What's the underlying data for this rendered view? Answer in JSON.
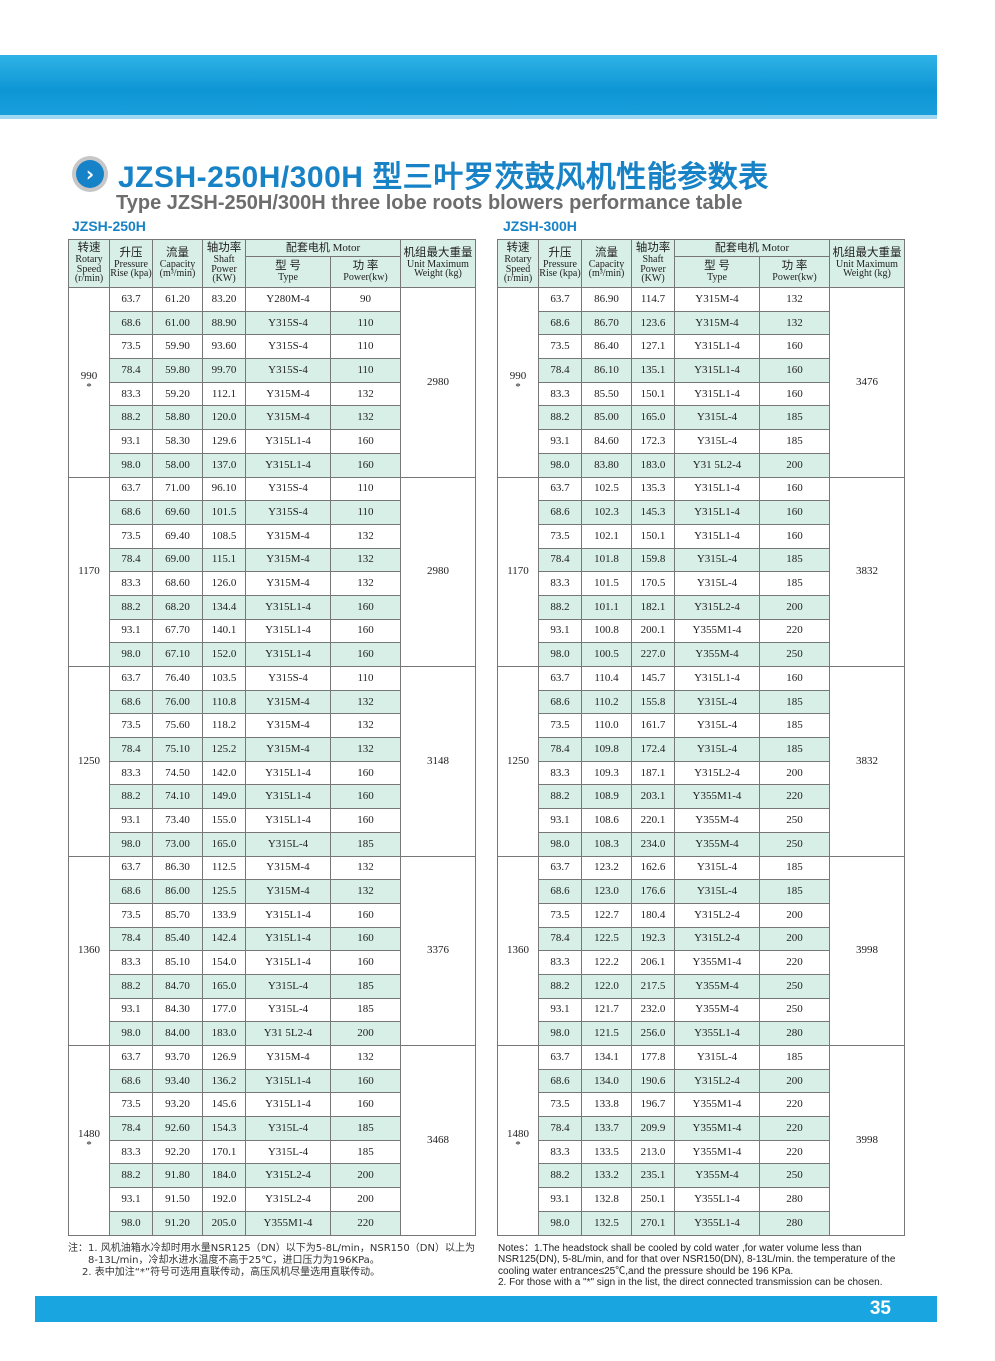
{
  "title": "JZSH-250H/300H 型三叶罗茨鼓风机性能参数表",
  "subtitle": "Type JZSH-250H/300H  three lobe roots blowers performance table",
  "colors": {
    "brand_blue": "#1783c6",
    "band_blue": "#19a6e0",
    "row_tint": "#d8efe7"
  },
  "header": {
    "speed": {
      "cn": "转速",
      "en": "Rotary Speed (r/min)"
    },
    "rise": {
      "cn": "升压",
      "en": "Pressure Rise (kpa)"
    },
    "capacity": {
      "cn": "流量",
      "en": "Capacity (m³/min)"
    },
    "shaft": {
      "cn": "轴功率",
      "en": "Shaft Power (KW)"
    },
    "motor": "配套电机 Motor",
    "type": {
      "cn": "型 号",
      "en": "Type"
    },
    "power": {
      "cn": "功 率",
      "en": "Power(kw)"
    },
    "weight": {
      "cn": "机组最大重量",
      "en": "Unit Maximum Weight (kg)"
    }
  },
  "tables": [
    {
      "label": "JZSH-250H",
      "groups": [
        {
          "speed": "990",
          "star": "*",
          "weight": "2980",
          "rows": [
            [
              "63.7",
              "61.20",
              "83.20",
              "Y280M-4",
              "90"
            ],
            [
              "68.6",
              "61.00",
              "88.90",
              "Y315S-4",
              "110"
            ],
            [
              "73.5",
              "59.90",
              "93.60",
              "Y315S-4",
              "110"
            ],
            [
              "78.4",
              "59.80",
              "99.70",
              "Y315S-4",
              "110"
            ],
            [
              "83.3",
              "59.20",
              "112.1",
              "Y315M-4",
              "132"
            ],
            [
              "88.2",
              "58.80",
              "120.0",
              "Y315M-4",
              "132"
            ],
            [
              "93.1",
              "58.30",
              "129.6",
              "Y315L1-4",
              "160"
            ],
            [
              "98.0",
              "58.00",
              "137.0",
              "Y315L1-4",
              "160"
            ]
          ]
        },
        {
          "speed": "1170",
          "star": "",
          "weight": "2980",
          "rows": [
            [
              "63.7",
              "71.00",
              "96.10",
              "Y315S-4",
              "110"
            ],
            [
              "68.6",
              "69.60",
              "101.5",
              "Y315S-4",
              "110"
            ],
            [
              "73.5",
              "69.40",
              "108.5",
              "Y315M-4",
              "132"
            ],
            [
              "78.4",
              "69.00",
              "115.1",
              "Y315M-4",
              "132"
            ],
            [
              "83.3",
              "68.60",
              "126.0",
              "Y315M-4",
              "132"
            ],
            [
              "88.2",
              "68.20",
              "134.4",
              "Y315L1-4",
              "160"
            ],
            [
              "93.1",
              "67.70",
              "140.1",
              "Y315L1-4",
              "160"
            ],
            [
              "98.0",
              "67.10",
              "152.0",
              "Y315L1-4",
              "160"
            ]
          ]
        },
        {
          "speed": "1250",
          "star": "",
          "weight": "3148",
          "rows": [
            [
              "63.7",
              "76.40",
              "103.5",
              "Y315S-4",
              "110"
            ],
            [
              "68.6",
              "76.00",
              "110.8",
              "Y315M-4",
              "132"
            ],
            [
              "73.5",
              "75.60",
              "118.2",
              "Y315M-4",
              "132"
            ],
            [
              "78.4",
              "75.10",
              "125.2",
              "Y315M-4",
              "132"
            ],
            [
              "83.3",
              "74.50",
              "142.0",
              "Y315L1-4",
              "160"
            ],
            [
              "88.2",
              "74.10",
              "149.0",
              "Y315L1-4",
              "160"
            ],
            [
              "93.1",
              "73.40",
              "155.0",
              "Y315L1-4",
              "160"
            ],
            [
              "98.0",
              "73.00",
              "165.0",
              "Y315L-4",
              "185"
            ]
          ]
        },
        {
          "speed": "1360",
          "star": "",
          "weight": "3376",
          "rows": [
            [
              "63.7",
              "86.30",
              "112.5",
              "Y315M-4",
              "132"
            ],
            [
              "68.6",
              "86.00",
              "125.5",
              "Y315M-4",
              "132"
            ],
            [
              "73.5",
              "85.70",
              "133.9",
              "Y315L1-4",
              "160"
            ],
            [
              "78.4",
              "85.40",
              "142.4",
              "Y315L1-4",
              "160"
            ],
            [
              "83.3",
              "85.10",
              "154.0",
              "Y315L1-4",
              "160"
            ],
            [
              "88.2",
              "84.70",
              "165.0",
              "Y315L-4",
              "185"
            ],
            [
              "93.1",
              "84.30",
              "177.0",
              "Y315L-4",
              "185"
            ],
            [
              "98.0",
              "84.00",
              "183.0",
              "Y31 5L2-4",
              "200"
            ]
          ]
        },
        {
          "speed": "1480",
          "star": "*",
          "weight": "3468",
          "rows": [
            [
              "63.7",
              "93.70",
              "126.9",
              "Y315M-4",
              "132"
            ],
            [
              "68.6",
              "93.40",
              "136.2",
              "Y315L1-4",
              "160"
            ],
            [
              "73.5",
              "93.20",
              "145.6",
              "Y315L1-4",
              "160"
            ],
            [
              "78.4",
              "92.60",
              "154.3",
              "Y315L-4",
              "185"
            ],
            [
              "83.3",
              "92.20",
              "170.1",
              "Y315L-4",
              "185"
            ],
            [
              "88.2",
              "91.80",
              "184.0",
              "Y315L2-4",
              "200"
            ],
            [
              "93.1",
              "91.50",
              "192.0",
              "Y315L2-4",
              "200"
            ],
            [
              "98.0",
              "91.20",
              "205.0",
              "Y355M1-4",
              "220"
            ]
          ]
        }
      ]
    },
    {
      "label": "JZSH-300H",
      "groups": [
        {
          "speed": "990",
          "star": "*",
          "weight": "3476",
          "rows": [
            [
              "63.7",
              "86.90",
              "114.7",
              "Y315M-4",
              "132"
            ],
            [
              "68.6",
              "86.70",
              "123.6",
              "Y315M-4",
              "132"
            ],
            [
              "73.5",
              "86.40",
              "127.1",
              "Y315L1-4",
              "160"
            ],
            [
              "78.4",
              "86.10",
              "135.1",
              "Y315L1-4",
              "160"
            ],
            [
              "83.3",
              "85.50",
              "150.1",
              "Y315L1-4",
              "160"
            ],
            [
              "88.2",
              "85.00",
              "165.0",
              "Y315L-4",
              "185"
            ],
            [
              "93.1",
              "84.60",
              "172.3",
              "Y315L-4",
              "185"
            ],
            [
              "98.0",
              "83.80",
              "183.0",
              "Y31 5L2-4",
              "200"
            ]
          ]
        },
        {
          "speed": "1170",
          "star": "",
          "weight": "3832",
          "rows": [
            [
              "63.7",
              "102.5",
              "135.3",
              "Y315L1-4",
              "160"
            ],
            [
              "68.6",
              "102.3",
              "145.3",
              "Y315L1-4",
              "160"
            ],
            [
              "73.5",
              "102.1",
              "150.1",
              "Y315L1-4",
              "160"
            ],
            [
              "78.4",
              "101.8",
              "159.8",
              "Y315L-4",
              "185"
            ],
            [
              "83.3",
              "101.5",
              "170.5",
              "Y315L-4",
              "185"
            ],
            [
              "88.2",
              "101.1",
              "182.1",
              "Y315L2-4",
              "200"
            ],
            [
              "93.1",
              "100.8",
              "200.1",
              "Y355M1-4",
              "220"
            ],
            [
              "98.0",
              "100.5",
              "227.0",
              "Y355M-4",
              "250"
            ]
          ]
        },
        {
          "speed": "1250",
          "star": "",
          "weight": "3832",
          "rows": [
            [
              "63.7",
              "110.4",
              "145.7",
              "Y315L1-4",
              "160"
            ],
            [
              "68.6",
              "110.2",
              "155.8",
              "Y315L-4",
              "185"
            ],
            [
              "73.5",
              "110.0",
              "161.7",
              "Y315L-4",
              "185"
            ],
            [
              "78.4",
              "109.8",
              "172.4",
              "Y315L-4",
              "185"
            ],
            [
              "83.3",
              "109.3",
              "187.1",
              "Y315L2-4",
              "200"
            ],
            [
              "88.2",
              "108.9",
              "203.1",
              "Y355M1-4",
              "220"
            ],
            [
              "93.1",
              "108.6",
              "220.1",
              "Y355M-4",
              "250"
            ],
            [
              "98.0",
              "108.3",
              "234.0",
              "Y355M-4",
              "250"
            ]
          ]
        },
        {
          "speed": "1360",
          "star": "",
          "weight": "3998",
          "rows": [
            [
              "63.7",
              "123.2",
              "162.6",
              "Y315L-4",
              "185"
            ],
            [
              "68.6",
              "123.0",
              "176.6",
              "Y315L-4",
              "185"
            ],
            [
              "73.5",
              "122.7",
              "180.4",
              "Y315L2-4",
              "200"
            ],
            [
              "78.4",
              "122.5",
              "192.3",
              "Y315L2-4",
              "200"
            ],
            [
              "83.3",
              "122.2",
              "206.1",
              "Y355M1-4",
              "220"
            ],
            [
              "88.2",
              "122.0",
              "217.5",
              "Y355M-4",
              "250"
            ],
            [
              "93.1",
              "121.7",
              "232.0",
              "Y355M-4",
              "250"
            ],
            [
              "98.0",
              "121.5",
              "256.0",
              "Y355L1-4",
              "280"
            ]
          ]
        },
        {
          "speed": "1480",
          "star": "*",
          "weight": "3998",
          "rows": [
            [
              "63.7",
              "134.1",
              "177.8",
              "Y315L-4",
              "185"
            ],
            [
              "68.6",
              "134.0",
              "190.6",
              "Y315L2-4",
              "200"
            ],
            [
              "73.5",
              "133.8",
              "196.7",
              "Y355M1-4",
              "220"
            ],
            [
              "78.4",
              "133.7",
              "209.9",
              "Y355M1-4",
              "220"
            ],
            [
              "83.3",
              "133.5",
              "213.0",
              "Y355M1-4",
              "220"
            ],
            [
              "88.2",
              "133.2",
              "235.1",
              "Y355M-4",
              "250"
            ],
            [
              "93.1",
              "132.8",
              "250.1",
              "Y355L1-4",
              "280"
            ],
            [
              "98.0",
              "132.5",
              "270.1",
              "Y355L1-4",
              "280"
            ]
          ]
        }
      ]
    }
  ],
  "notes_cn": {
    "l1": "注：1. 风机油箱水冷却时用水量NSR125（DN）以下为5-8L/min，NSR150（DN）以上为",
    "l2": "8-13L/min，冷却水进水温度不高于25℃，进口压力为196KPa。",
    "l3": "2. 表中加注“*”符号可选用直联传动，高压风机尽量选用直联传动。"
  },
  "notes_en": {
    "n1": "Notes：1.The headstock shall be cooled by cold water ,for water volume less than NSR125(DN), 5-8L/min, and for that over NSR150(DN), 8-13L/min. the temperature of the cooling water entrance≤25℃,and the pressure should be 196 KPa.",
    "n2": "2. For those with a \"*\" sign in the list, the direct connected transmission can be chosen."
  },
  "page_number": "35"
}
